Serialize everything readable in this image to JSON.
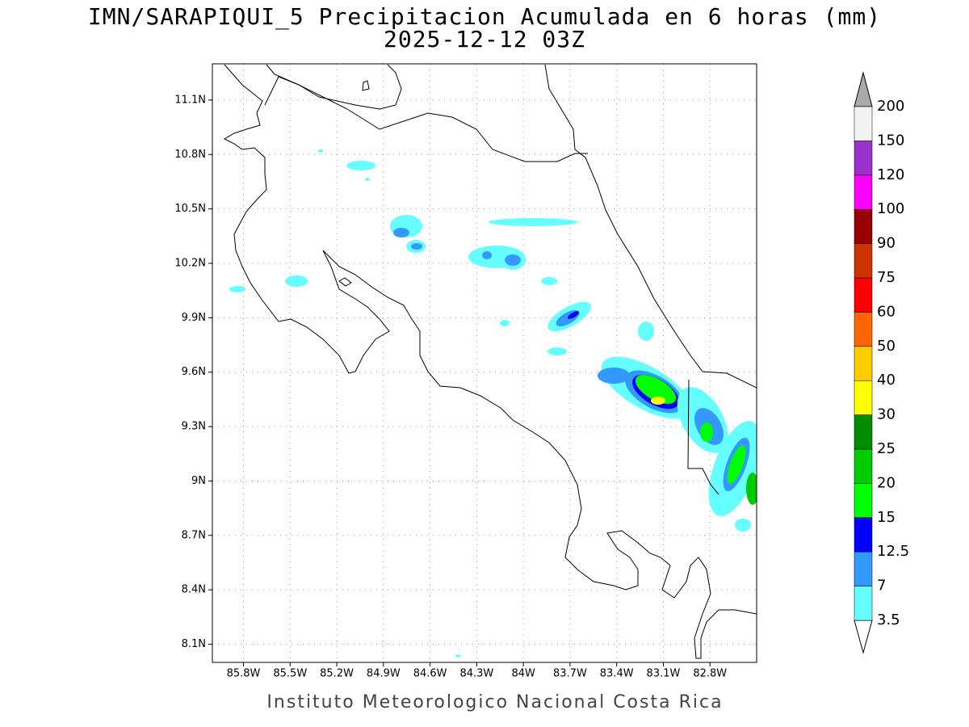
{
  "title": "IMN/SARAPIQUI_5 Precipitacion Acumulada en 6 horas (mm)",
  "subtitle": "2025-12-12 03Z",
  "map": {
    "xlim": [
      -86.0,
      -82.5
    ],
    "ylim": [
      8.0,
      11.3
    ],
    "grid": true,
    "xticks": [
      {
        "value": -85.8,
        "label": "85.8W"
      },
      {
        "value": -85.5,
        "label": "85.5W"
      },
      {
        "value": -85.2,
        "label": "85.2W"
      },
      {
        "value": -84.9,
        "label": "84.9W"
      },
      {
        "value": -84.6,
        "label": "84.6W"
      },
      {
        "value": -84.3,
        "label": "84.3W"
      },
      {
        "value": -84.0,
        "label": "84W"
      },
      {
        "value": -83.7,
        "label": "83.7W"
      },
      {
        "value": -83.4,
        "label": "83.4W"
      },
      {
        "value": -83.1,
        "label": "83.1W"
      },
      {
        "value": -82.8,
        "label": "82.8W"
      }
    ],
    "yticks": [
      {
        "value": 8.1,
        "label": "8.1N"
      },
      {
        "value": 8.4,
        "label": "8.4N"
      },
      {
        "value": 8.7,
        "label": "8.7N"
      },
      {
        "value": 9.0,
        "label": "9N"
      },
      {
        "value": 9.3,
        "label": "9.3N"
      },
      {
        "value": 9.6,
        "label": "9.6N"
      },
      {
        "value": 9.9,
        "label": "9.9N"
      },
      {
        "value": 10.2,
        "label": "10.2N"
      },
      {
        "value": 10.5,
        "label": "10.5N"
      },
      {
        "value": 10.8,
        "label": "10.8N"
      },
      {
        "value": 11.1,
        "label": "11.1N"
      }
    ]
  },
  "colorbar": {
    "levels": [
      3.5,
      7,
      12.5,
      15,
      20,
      25,
      30,
      40,
      50,
      60,
      75,
      90,
      100,
      120,
      150,
      200
    ],
    "colors": [
      "#66ffff",
      "#3399ff",
      "#0000ff",
      "#00ff00",
      "#00cc00",
      "#008c00",
      "#ffff00",
      "#ffcc00",
      "#ff6600",
      "#ff0000",
      "#cc3300",
      "#990000",
      "#ff00ff",
      "#9933cc",
      "#f2f2f2"
    ],
    "below_color": "#ffffff",
    "above_color": "#aaaaaa"
  },
  "footer": "Instituto Meteorologico Nacional Costa Rica"
}
